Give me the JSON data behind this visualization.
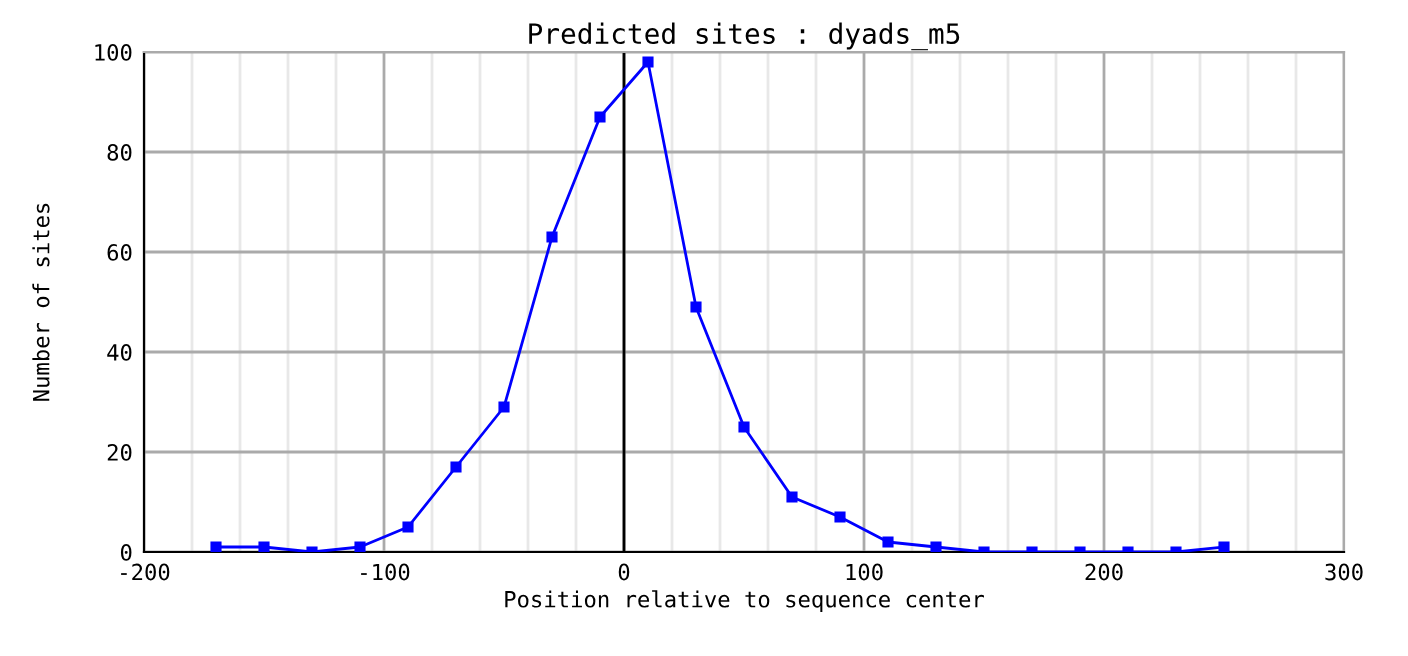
{
  "chart_data": {
    "type": "line",
    "title": "Predicted sites : dyads_m5",
    "xlabel": "Position relative to sequence center",
    "ylabel": "Number of sites",
    "x": [
      -170,
      -150,
      -130,
      -110,
      -90,
      -70,
      -50,
      -30,
      -10,
      10,
      30,
      50,
      70,
      90,
      110,
      130,
      150,
      170,
      190,
      210,
      230,
      250
    ],
    "series": [
      {
        "color": "#0000ff",
        "values": [
          1,
          1,
          0,
          1,
          5,
          17,
          29,
          63,
          87,
          98,
          49,
          25,
          11,
          7,
          2,
          1,
          0,
          0,
          0,
          0,
          0,
          1
        ]
      }
    ],
    "xlim": [
      -200,
      300
    ],
    "ylim": [
      0,
      100
    ],
    "xticks": [
      -200,
      {
        "value": -180,
        "label": null
      },
      {
        "value": -160,
        "label": null
      },
      {
        "value": -140,
        "label": null
      },
      {
        "value": -120,
        "label": null
      },
      -100,
      {
        "value": -80,
        "label": null
      },
      {
        "value": -60,
        "label": null
      },
      {
        "value": -40,
        "label": null
      },
      {
        "value": -20,
        "label": null
      },
      0,
      {
        "value": 20,
        "label": null
      },
      {
        "value": 40,
        "label": null
      },
      {
        "value": 60,
        "label": null
      },
      {
        "value": 80,
        "label": null
      },
      100,
      {
        "value": 120,
        "label": null
      },
      {
        "value": 140,
        "label": null
      },
      {
        "value": 160,
        "label": null
      },
      {
        "value": 180,
        "label": null
      },
      200,
      {
        "value": 220,
        "label": null
      },
      {
        "value": 240,
        "label": null
      },
      {
        "value": 260,
        "label": null
      },
      {
        "value": 280,
        "label": null
      },
      300
    ],
    "yticks": [
      0,
      20,
      40,
      60,
      80,
      100
    ],
    "ref_lines": [
      {
        "axis": "x",
        "value": 0,
        "color": "#000000"
      }
    ],
    "grid": true,
    "marker": "square",
    "line_style": "solid"
  }
}
